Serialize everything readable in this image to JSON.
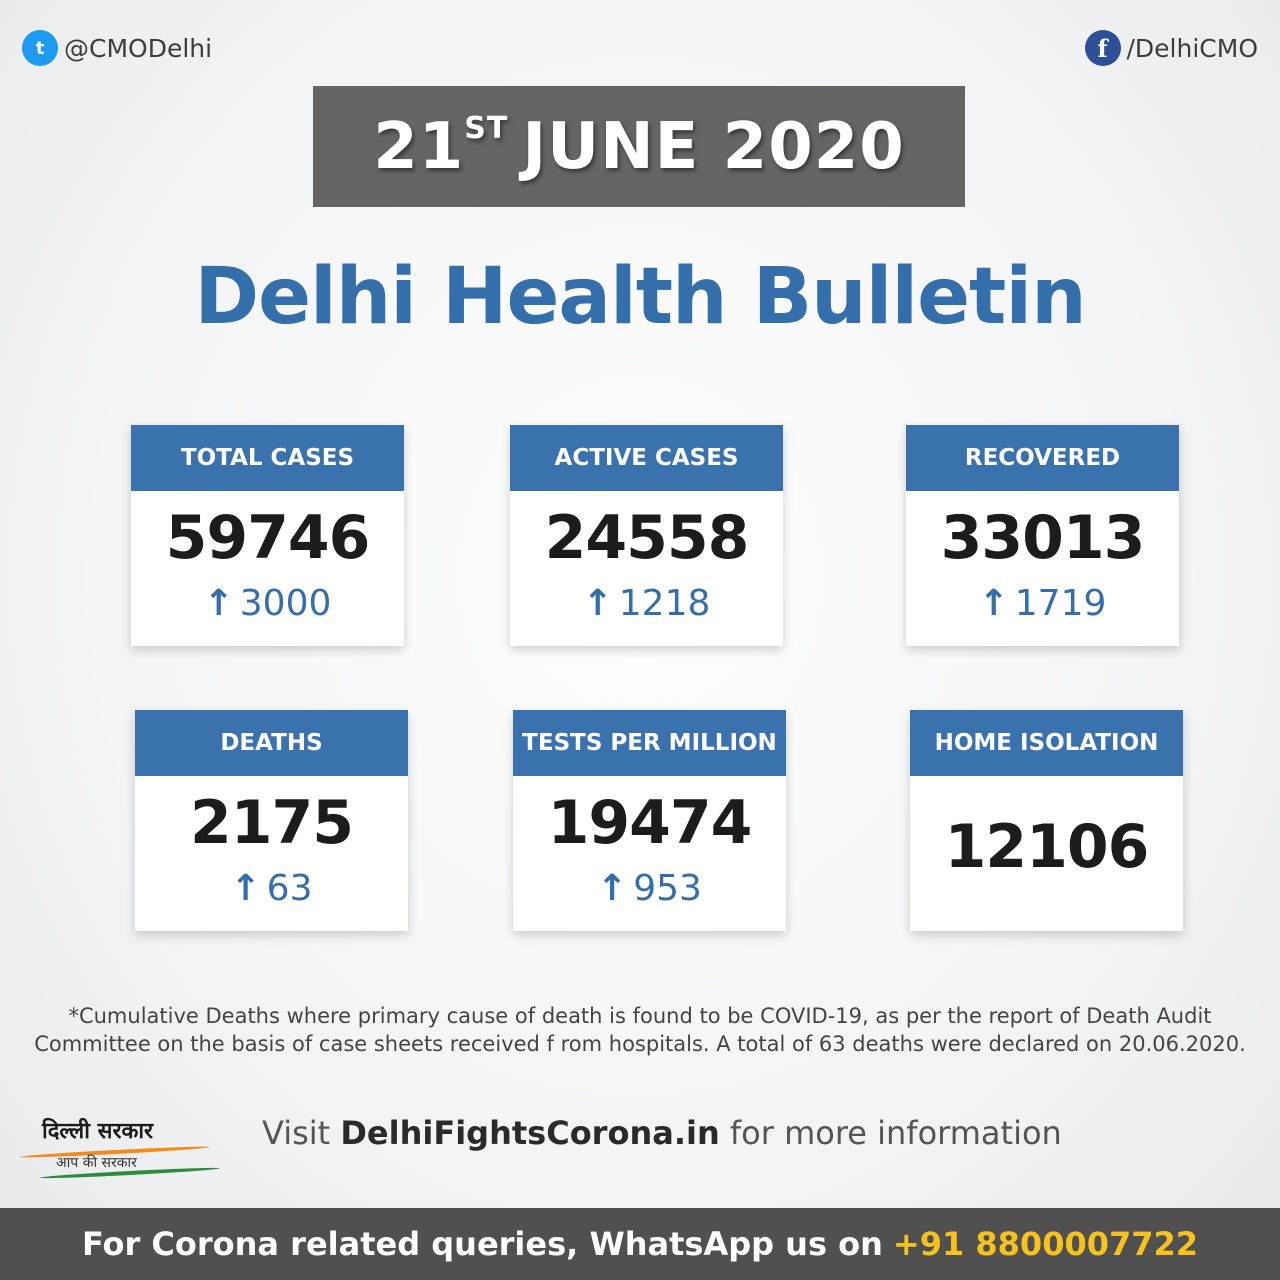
{
  "social": {
    "twitter_handle": "@CMODelhi",
    "facebook_handle": "/DelhiCMO"
  },
  "date": {
    "day": "21",
    "suffix": "ST",
    "rest": "JUNE 2020"
  },
  "title": "Delhi Health Bulletin",
  "cards": [
    {
      "label": "TOTAL CASES",
      "value": "59746",
      "arrow": "↑",
      "delta": "3000"
    },
    {
      "label": "ACTIVE CASES",
      "value": "24558",
      "arrow": "↑",
      "delta": "1218"
    },
    {
      "label": "RECOVERED",
      "value": "33013",
      "arrow": "↑",
      "delta": "1719"
    },
    {
      "label": "DEATHS",
      "value": "2175",
      "arrow": "↑",
      "delta": "63"
    },
    {
      "label": "TESTS PER MILLION",
      "value": "19474",
      "arrow": "↑",
      "delta": "953"
    },
    {
      "label": "HOME ISOLATION",
      "value": "12106"
    }
  ],
  "footnote": {
    "line1": "*Cumulative Deaths where primary cause of death is found to be COVID-19, as per  the report of Death Audit",
    "line2": "Committee on the basis of case sheets received f rom hospitals. A total of 63 deaths were declared on 20.06.2020."
  },
  "logo": {
    "line1": "दिल्ली सरकार",
    "line2": "आप की सरकार"
  },
  "visit": {
    "prefix": "Visit ",
    "site": "DelhiFightsCorona.in",
    "suffix": " for more information"
  },
  "bottom": {
    "text": "For Corona related queries, WhatsApp us on",
    "phone": "+91 8800007722"
  },
  "colors": {
    "accent": "#3a72ae",
    "title": "#356fab",
    "date_box": "#656565",
    "bottom_bar": "#505050",
    "phone": "#f7c21b"
  }
}
